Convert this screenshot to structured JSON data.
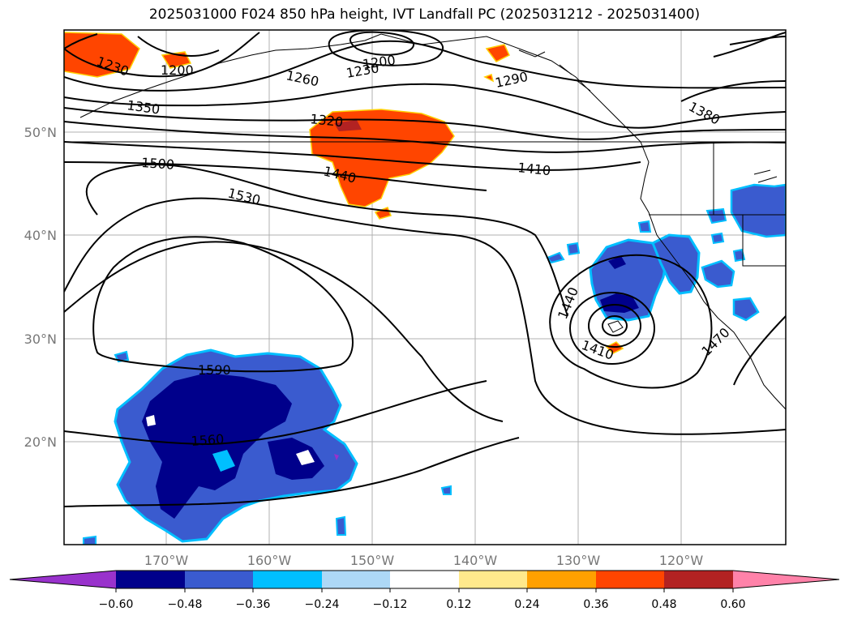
{
  "title": "2025031000 F024 850 hPa height, IVT Landfall PC (2025031212 - 2025031400)",
  "lat_labels": [
    "50°N",
    "40°N",
    "30°N",
    "20°N"
  ],
  "lon_labels": [
    "170°W",
    "160°W",
    "150°W",
    "140°W",
    "130°W",
    "120°W"
  ],
  "contour_labels": [
    "1230",
    "1200",
    "1260",
    "1230",
    "1200",
    "1290",
    "1380",
    "1350",
    "1320",
    "1500",
    "1440",
    "1410",
    "1530",
    "1440",
    "1410",
    "1470",
    "1590",
    "1560"
  ],
  "colorbar": {
    "ticks": [
      "−0.60",
      "−0.48",
      "−0.36",
      "−0.24",
      "−0.12",
      "0.12",
      "0.24",
      "0.36",
      "0.48",
      "0.60"
    ],
    "colors": [
      "#9932cc",
      "#00008b",
      "#3a5bcf",
      "#00bfff",
      "#add8f6",
      "#ffffff",
      "#ffe98c",
      "#ffa000",
      "#ff4500",
      "#b22222",
      "#ff82a9"
    ]
  },
  "palette": {
    "pos_fill": "#ff4500",
    "pos_edge": "#ffd000",
    "neg_fill": "#3a5bcf",
    "neg_core": "#00008b",
    "neg_edge": "#00bfff",
    "neg_rim": "#add8f6",
    "grid": "#b0b0b0"
  }
}
